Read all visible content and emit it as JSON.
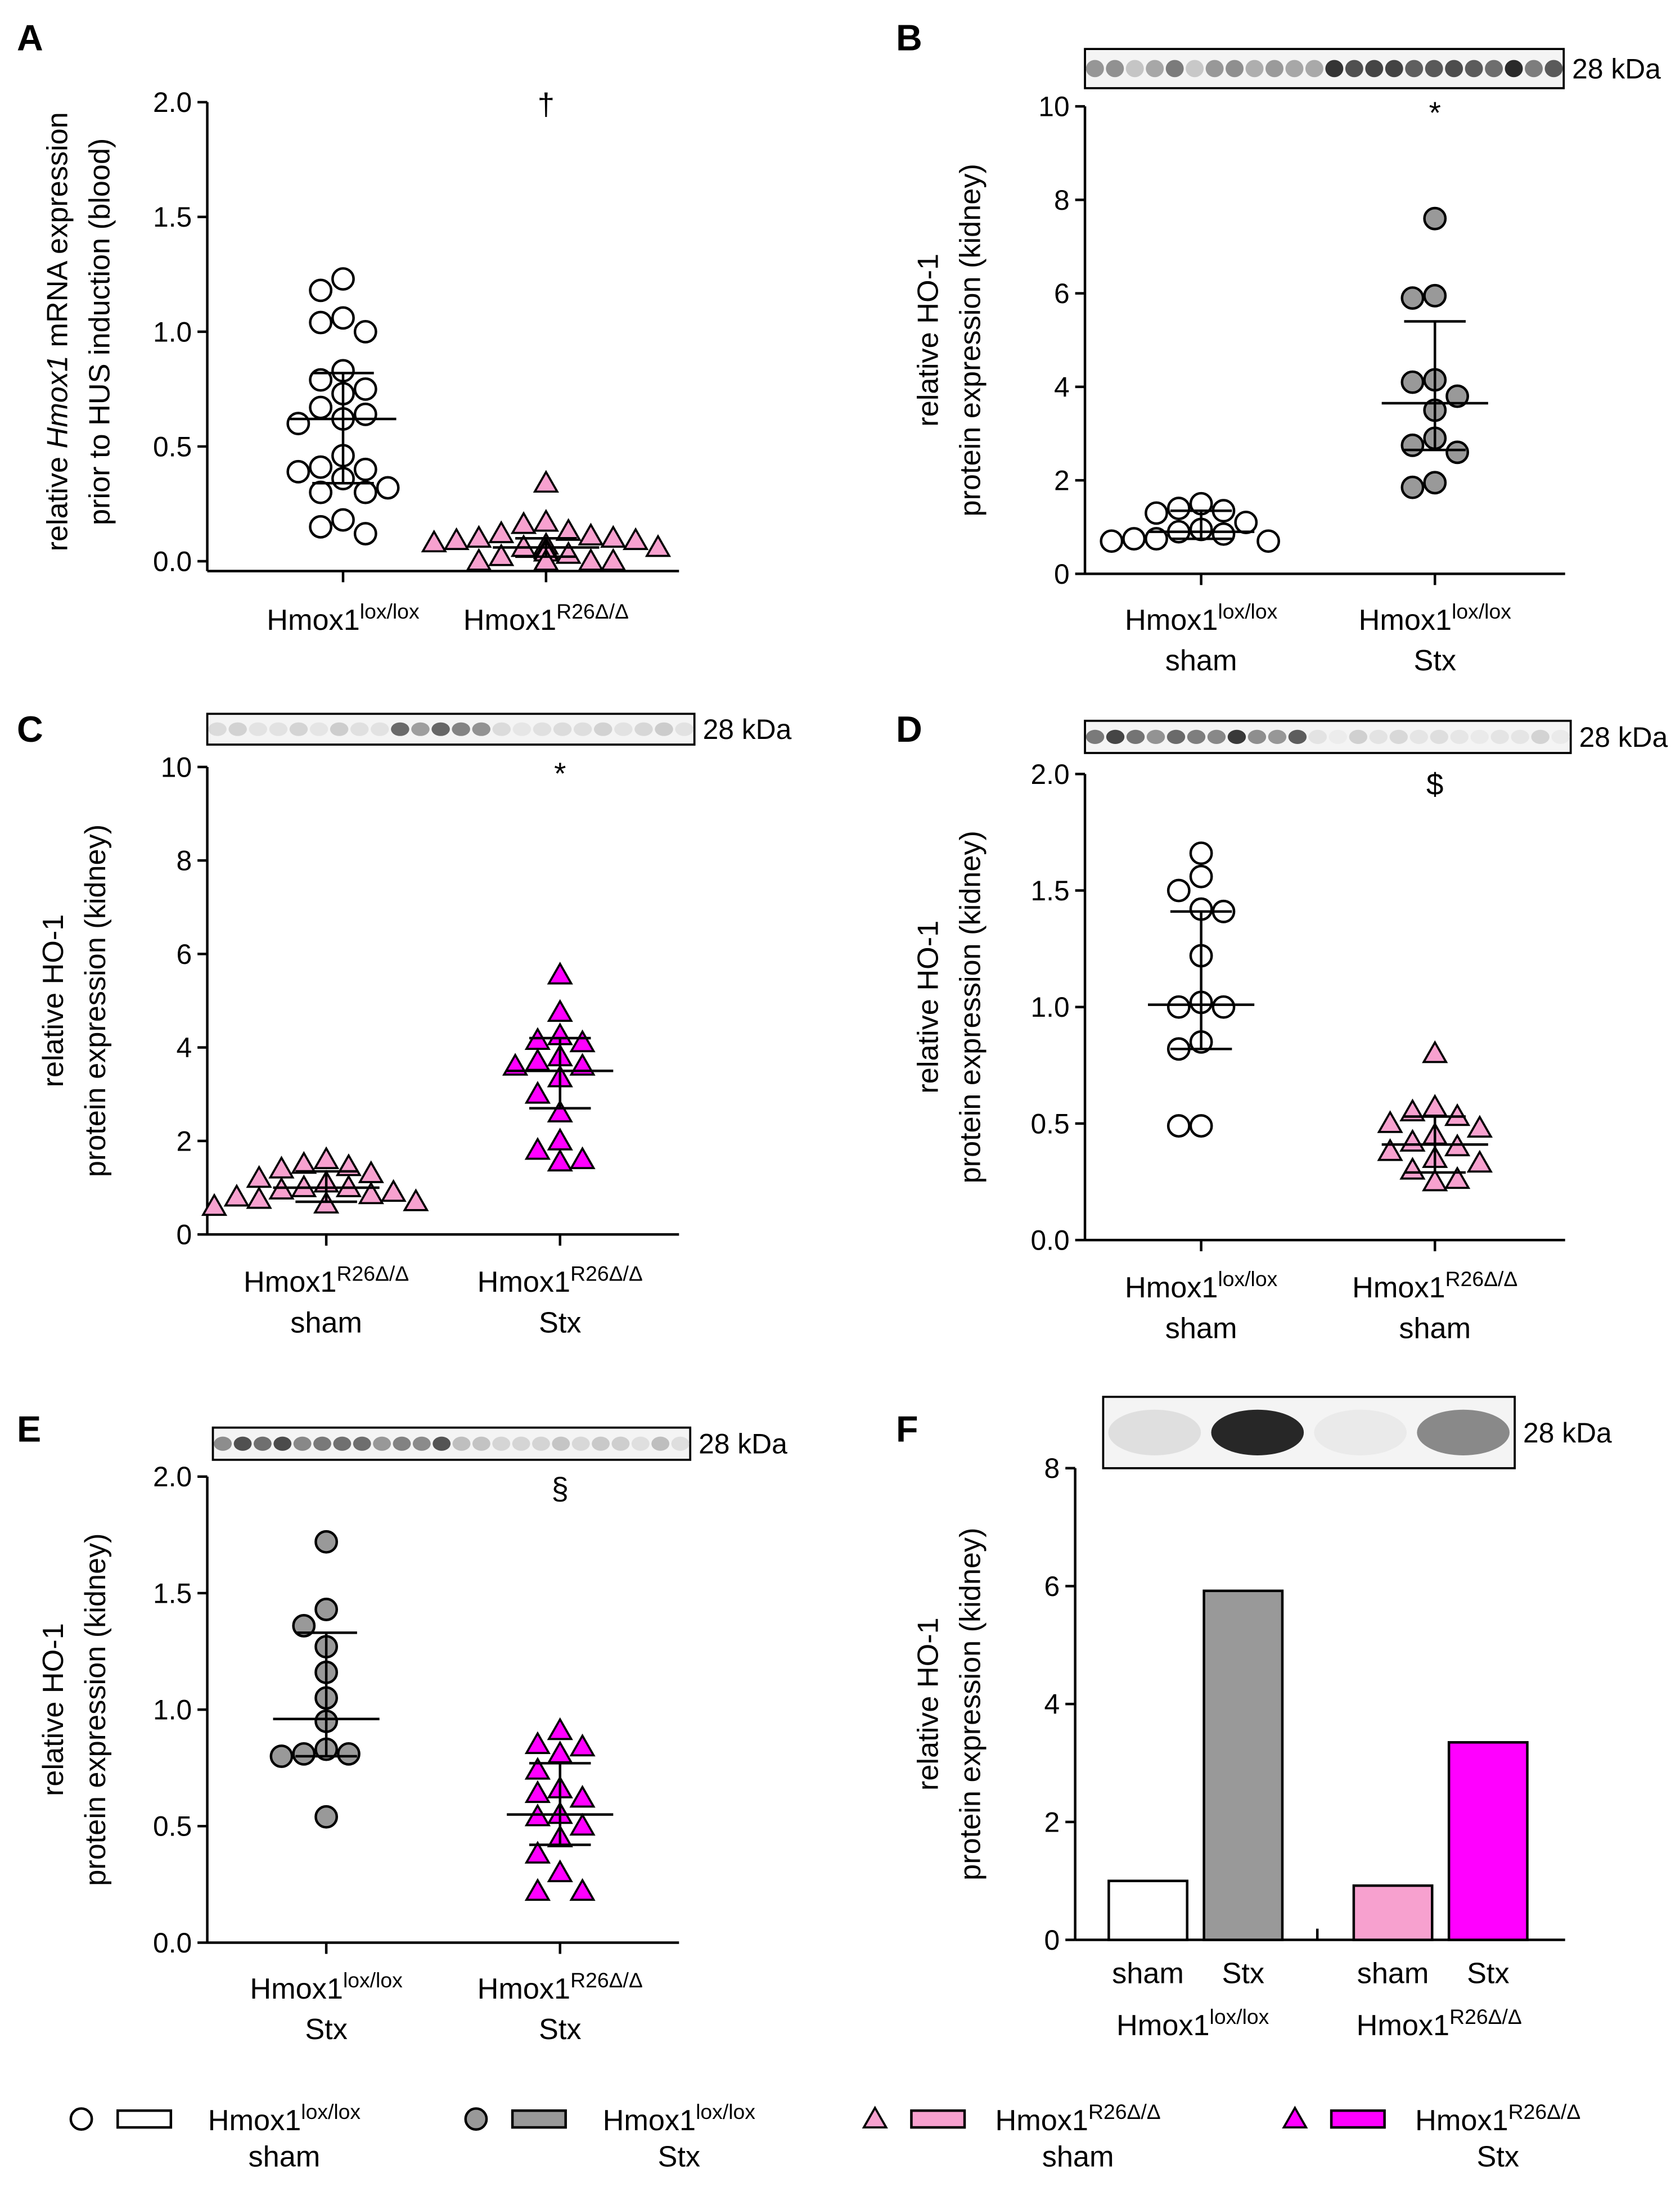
{
  "colors": {
    "lox_sham": "#ffffff",
    "lox_stx": "#999999",
    "r26_sham": "#f7a1cf",
    "r26_stx": "#ff00ff",
    "stroke": "#000000"
  },
  "chart_data": [
    {
      "panel": "A",
      "type": "scatter",
      "ylabel": [
        "relative ",
        "Hmox1",
        " mRNA expression",
        "prior to HUS induction (blood)"
      ],
      "ylim": [
        0,
        2.0
      ],
      "yticks": [
        "0.0",
        "0.5",
        "1.0",
        "1.5",
        "2.0"
      ],
      "significance": "†",
      "blot": null,
      "groups": [
        {
          "label": "Hmox1",
          "sup": "lox/lox",
          "line2": "",
          "marker": "circle",
          "color": "lox_sham",
          "values": [
            1.23,
            1.18,
            1.06,
            1.04,
            1.0,
            0.83,
            0.79,
            0.75,
            0.73,
            0.67,
            0.64,
            0.62,
            0.6,
            0.46,
            0.41,
            0.4,
            0.39,
            0.36,
            0.32,
            0.3,
            0.3,
            0.18,
            0.15,
            0.12
          ],
          "mean": 0.62,
          "sd_high": 0.82,
          "sd_low": 0.34
        },
        {
          "label": "Hmox1",
          "sup": "R26Δ/Δ",
          "line2": "",
          "marker": "triangle",
          "color": "r26_sham",
          "values": [
            0.34,
            0.17,
            0.16,
            0.13,
            0.12,
            0.11,
            0.1,
            0.1,
            0.09,
            0.09,
            0.08,
            0.07,
            0.06,
            0.06,
            0.05,
            0.05,
            0.04,
            0.03,
            0.02,
            0.0,
            0.0,
            0.0,
            0.0,
            0.0,
            0.0,
            0.0,
            0.0
          ],
          "mean": 0.06,
          "sd_high": 0.1,
          "sd_low": 0.02
        }
      ]
    },
    {
      "panel": "B",
      "type": "scatter",
      "ylabel": [
        "",
        "",
        "relative HO-1",
        "protein expression (kidney)"
      ],
      "ylim": [
        0,
        10
      ],
      "yticks": [
        "0",
        "2",
        "4",
        "6",
        "8",
        "10"
      ],
      "significance": "*",
      "blot": "28 kDa",
      "groups": [
        {
          "label": "Hmox1",
          "sup": "lox/lox",
          "line2": "sham",
          "marker": "circle",
          "color": "lox_sham",
          "values": [
            1.5,
            1.4,
            1.35,
            1.3,
            1.1,
            0.95,
            0.9,
            0.85,
            0.75,
            0.75,
            0.7,
            0.7
          ],
          "mean": 0.9,
          "sd_high": 1.35,
          "sd_low": 0.75
        },
        {
          "label": "Hmox1",
          "sup": "lox/lox",
          "line2": "Stx",
          "marker": "circle",
          "color": "lox_stx",
          "values": [
            7.6,
            5.95,
            5.9,
            4.15,
            4.1,
            3.8,
            3.5,
            2.9,
            2.75,
            2.6,
            1.95,
            1.85
          ],
          "mean": 3.65,
          "sd_high": 5.4,
          "sd_low": 2.65
        }
      ]
    },
    {
      "panel": "C",
      "type": "scatter",
      "ylabel": [
        "",
        "",
        "relative HO-1",
        "protein expression (kidney)"
      ],
      "ylim": [
        0,
        10
      ],
      "yticks": [
        "0",
        "2",
        "4",
        "6",
        "8",
        "10"
      ],
      "significance": "*",
      "blot": "28 kDa",
      "groups": [
        {
          "label": "Hmox1",
          "sup": "R26Δ/Δ",
          "line2": "sham",
          "marker": "triangle",
          "color": "r26_sham",
          "values": [
            1.6,
            1.5,
            1.45,
            1.4,
            1.3,
            1.2,
            1.1,
            1.0,
            1.0,
            0.95,
            0.9,
            0.85,
            0.8,
            0.75,
            0.7,
            0.65,
            0.6
          ],
          "mean": 1.0,
          "sd_high": 1.35,
          "sd_low": 0.7
        },
        {
          "label": "Hmox1",
          "sup": "R26Δ/Δ",
          "line2": "Stx",
          "marker": "triangle",
          "color": "r26_stx",
          "values": [
            5.55,
            4.75,
            4.25,
            4.15,
            4.1,
            3.8,
            3.7,
            3.6,
            3.6,
            3.35,
            3.0,
            2.6,
            2.0,
            1.8,
            1.6,
            1.55
          ],
          "mean": 3.5,
          "sd_high": 4.2,
          "sd_low": 2.7
        }
      ]
    },
    {
      "panel": "D",
      "type": "scatter",
      "ylabel": [
        "",
        "",
        "relative HO-1",
        "protein expression (kidney)"
      ],
      "ylim": [
        0,
        2.0
      ],
      "yticks": [
        "0.0",
        "0.5",
        "1.0",
        "1.5",
        "2.0"
      ],
      "significance": "$",
      "blot": "28 kDa",
      "groups": [
        {
          "label": "Hmox1",
          "sup": "lox/lox",
          "line2": "sham",
          "marker": "circle",
          "color": "lox_sham",
          "values": [
            1.66,
            1.56,
            1.5,
            1.42,
            1.41,
            1.22,
            1.02,
            1.0,
            1.0,
            0.85,
            0.82,
            0.49,
            0.49
          ],
          "mean": 1.01,
          "sd_high": 1.41,
          "sd_low": 0.82
        },
        {
          "label": "Hmox1",
          "sup": "R26Δ/Δ",
          "line2": "sham",
          "marker": "triangle",
          "color": "r26_sham",
          "values": [
            0.8,
            0.57,
            0.55,
            0.53,
            0.5,
            0.48,
            0.45,
            0.42,
            0.4,
            0.38,
            0.35,
            0.33,
            0.3,
            0.26,
            0.25
          ],
          "mean": 0.41,
          "sd_high": 0.53,
          "sd_low": 0.29
        }
      ]
    },
    {
      "panel": "E",
      "type": "scatter",
      "ylabel": [
        "",
        "",
        "relative HO-1",
        "protein expression (kidney)"
      ],
      "ylim": [
        0,
        2.0
      ],
      "yticks": [
        "0.0",
        "0.5",
        "1.0",
        "1.5",
        "2.0"
      ],
      "significance": "§",
      "blot": "28 kDa",
      "groups": [
        {
          "label": "Hmox1",
          "sup": "lox/lox",
          "line2": "Stx",
          "marker": "circle",
          "color": "lox_stx",
          "values": [
            1.72,
            1.43,
            1.36,
            1.27,
            1.16,
            1.05,
            0.95,
            0.83,
            0.81,
            0.81,
            0.8,
            0.54
          ],
          "mean": 0.96,
          "sd_high": 1.33,
          "sd_low": 0.8
        },
        {
          "label": "Hmox1",
          "sup": "R26Δ/Δ",
          "line2": "Stx",
          "marker": "triangle",
          "color": "r26_stx",
          "values": [
            0.91,
            0.85,
            0.84,
            0.81,
            0.74,
            0.66,
            0.64,
            0.62,
            0.55,
            0.54,
            0.5,
            0.45,
            0.38,
            0.3,
            0.22,
            0.22
          ],
          "mean": 0.55,
          "sd_high": 0.77,
          "sd_low": 0.42
        }
      ]
    },
    {
      "panel": "F",
      "type": "bar",
      "ylabel": [
        "",
        "",
        "relative HO-1",
        "protein expression (kidney)"
      ],
      "ylim": [
        0,
        8
      ],
      "yticks": [
        "0",
        "2",
        "4",
        "6",
        "8"
      ],
      "blot": "28 kDa",
      "categories": [
        "sham",
        "Stx",
        "sham",
        "Stx"
      ],
      "values": [
        1.0,
        5.92,
        0.92,
        3.35
      ],
      "bar_colors": [
        "lox_sham",
        "lox_stx",
        "r26_sham",
        "r26_stx"
      ],
      "group_labels": [
        {
          "label": "Hmox1",
          "sup": "lox/lox"
        },
        {
          "label": "Hmox1",
          "sup": "R26Δ/Δ"
        }
      ]
    }
  ],
  "legend": [
    {
      "marker": "circle",
      "color": "lox_sham",
      "label": "Hmox1",
      "sup": "lox/lox",
      "line2": "sham"
    },
    {
      "marker": "circle",
      "color": "lox_stx",
      "label": "Hmox1",
      "sup": "lox/lox",
      "line2": "Stx"
    },
    {
      "marker": "triangle",
      "color": "r26_sham",
      "label": "Hmox1",
      "sup": "R26Δ/Δ",
      "line2": "sham"
    },
    {
      "marker": "triangle",
      "color": "r26_stx",
      "label": "Hmox1",
      "sup": "R26Δ/Δ",
      "line2": "Stx"
    }
  ]
}
